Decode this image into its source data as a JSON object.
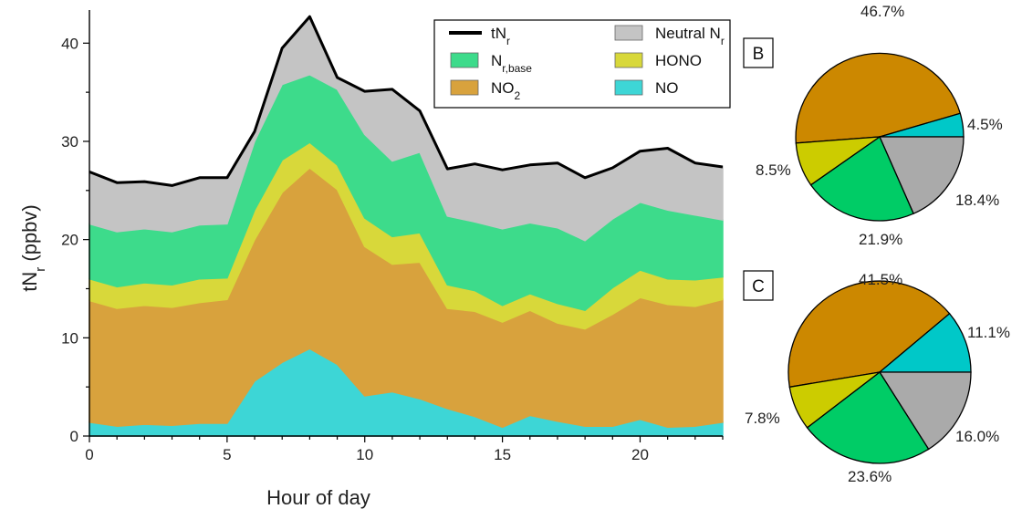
{
  "chart_data": [
    {
      "type": "area",
      "stacked": true,
      "x": [
        0,
        1,
        2,
        3,
        4,
        5,
        6,
        7,
        8,
        9,
        10,
        11,
        12,
        13,
        14,
        15,
        16,
        17,
        18,
        19,
        20,
        21,
        22,
        23
      ],
      "xlabel": "Hour of day",
      "ylabel_main": "tN",
      "ylabel_sub": "r",
      "ylabel_tail": " (ppbv)",
      "xlim": [
        0,
        23
      ],
      "ylim": [
        0,
        43
      ],
      "xticks": [
        "0",
        "5",
        "10",
        "15",
        "20"
      ],
      "yticks": [
        "0",
        "10",
        "20",
        "30",
        "40"
      ],
      "grid": false,
      "legend_position": "top-right",
      "series": [
        {
          "name": "NO",
          "color": "#3dd6d6",
          "values": [
            1.4,
            1.0,
            1.2,
            1.1,
            1.3,
            1.3,
            5.6,
            7.5,
            8.9,
            7.3,
            4.1,
            4.5,
            3.8,
            2.8,
            2.0,
            0.9,
            2.1,
            1.5,
            1.0,
            1.0,
            1.7,
            0.9,
            1.0,
            1.4
          ]
        },
        {
          "name": "NO2",
          "color": "#d8a23d",
          "values": [
            12.4,
            12.0,
            12.1,
            12.0,
            12.3,
            12.6,
            14.4,
            17.3,
            18.4,
            17.8,
            15.2,
            13.0,
            13.9,
            10.2,
            10.7,
            10.7,
            10.7,
            10.0,
            9.9,
            11.4,
            12.4,
            12.5,
            12.2,
            12.5
          ]
        },
        {
          "name": "HONO",
          "color": "#d8d83a",
          "values": [
            2.2,
            2.2,
            2.3,
            2.3,
            2.4,
            2.2,
            3.0,
            3.3,
            2.6,
            2.5,
            2.9,
            2.8,
            3.0,
            2.4,
            2.1,
            1.7,
            1.7,
            2.0,
            1.9,
            2.7,
            2.8,
            2.6,
            2.7,
            2.3
          ]
        },
        {
          "name": "Nr,base",
          "color": "#3ddb8b",
          "values": [
            5.6,
            5.6,
            5.5,
            5.4,
            5.5,
            5.5,
            7.0,
            7.7,
            6.9,
            7.7,
            8.5,
            7.7,
            8.2,
            7.0,
            7.0,
            7.8,
            7.2,
            7.7,
            7.1,
            7.0,
            6.9,
            7.0,
            6.6,
            5.8
          ]
        },
        {
          "name": "Neutral Nr",
          "color": "#c4c4c4",
          "values": [
            5.3,
            5.0,
            4.8,
            4.7,
            4.8,
            4.7,
            1.0,
            3.7,
            5.9,
            1.2,
            4.4,
            7.3,
            4.2,
            4.8,
            5.9,
            6.0,
            5.9,
            6.6,
            6.4,
            5.2,
            5.2,
            6.3,
            5.3,
            5.4
          ]
        }
      ],
      "total": {
        "name": "tNr",
        "color": "#000000",
        "values": [
          26.9,
          25.8,
          25.9,
          25.5,
          26.3,
          26.3,
          31.0,
          39.5,
          42.7,
          36.5,
          35.1,
          35.3,
          33.1,
          27.2,
          27.7,
          27.1,
          27.6,
          27.8,
          26.3,
          27.3,
          29.0,
          29.3,
          27.8,
          27.4
        ]
      },
      "legend": [
        {
          "main": "tN",
          "sub": "r",
          "subscript": true,
          "color": "#000000",
          "kind": "line"
        },
        {
          "main": "Neutral N",
          "sub": "r",
          "subscript": true,
          "color": "#c4c4c4",
          "kind": "box"
        },
        {
          "main": "N",
          "sub": "r,base",
          "subscript": true,
          "color": "#3ddb8b",
          "kind": "box"
        },
        {
          "main": "HONO",
          "sub": "",
          "subscript": false,
          "color": "#d8d83a",
          "kind": "box"
        },
        {
          "main": "NO",
          "sub": "2",
          "subscript": true,
          "color": "#d8a23d",
          "kind": "box"
        },
        {
          "main": "NO",
          "sub": "",
          "subscript": false,
          "color": "#3dd6d6",
          "kind": "box"
        }
      ]
    },
    {
      "type": "pie",
      "panel": "B",
      "slices": [
        {
          "label": "46.7%",
          "value": 46.7,
          "color": "#cc8800"
        },
        {
          "label": "4.5%",
          "value": 4.5,
          "color": "#00c8c8"
        },
        {
          "label": "18.4%",
          "value": 18.4,
          "color": "#aaaaaa"
        },
        {
          "label": "21.9%",
          "value": 21.9,
          "color": "#00cc66"
        },
        {
          "label": "8.5%",
          "value": 8.5,
          "color": "#cccc00"
        }
      ]
    },
    {
      "type": "pie",
      "panel": "C",
      "slices": [
        {
          "label": "41.5%",
          "value": 41.5,
          "color": "#cc8800"
        },
        {
          "label": "11.1%",
          "value": 11.1,
          "color": "#00c8c8"
        },
        {
          "label": "16.0%",
          "value": 16.0,
          "color": "#aaaaaa"
        },
        {
          "label": "23.6%",
          "value": 23.6,
          "color": "#00cc66"
        },
        {
          "label": "7.8%",
          "value": 7.8,
          "color": "#cccc00"
        }
      ]
    }
  ]
}
